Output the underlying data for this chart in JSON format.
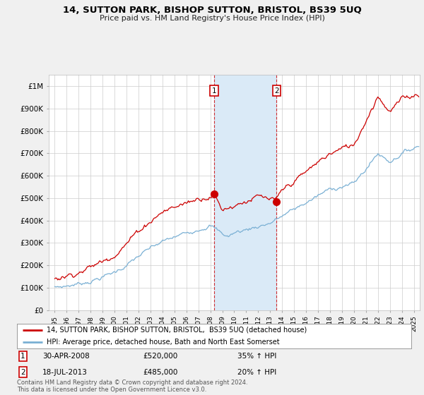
{
  "title": "14, SUTTON PARK, BISHOP SUTTON, BRISTOL, BS39 5UQ",
  "subtitle": "Price paid vs. HM Land Registry's House Price Index (HPI)",
  "ylabel_ticks": [
    "£0",
    "£100K",
    "£200K",
    "£300K",
    "£400K",
    "£500K",
    "£600K",
    "£700K",
    "£800K",
    "£900K",
    "£1M"
  ],
  "ytick_values": [
    0,
    100000,
    200000,
    300000,
    400000,
    500000,
    600000,
    700000,
    800000,
    900000,
    1000000
  ],
  "xlim": [
    1994.5,
    2025.5
  ],
  "ylim": [
    0,
    1050000
  ],
  "sale1_x": 2008.33,
  "sale1_y": 520000,
  "sale1_label": "1",
  "sale2_x": 2013.54,
  "sale2_y": 485000,
  "sale2_label": "2",
  "shade_color": "#daeaf7",
  "red_color": "#cc0000",
  "blue_color": "#7ab0d4",
  "legend1": "14, SUTTON PARK, BISHOP SUTTON, BRISTOL,  BS39 5UQ (detached house)",
  "legend2": "HPI: Average price, detached house, Bath and North East Somerset",
  "note1_label": "1",
  "note1_date": "30-APR-2008",
  "note1_price": "£520,000",
  "note1_hpi": "35% ↑ HPI",
  "note2_label": "2",
  "note2_date": "18-JUL-2013",
  "note2_price": "£485,000",
  "note2_hpi": "20% ↑ HPI",
  "footer": "Contains HM Land Registry data © Crown copyright and database right 2024.\nThis data is licensed under the Open Government Licence v3.0.",
  "background_color": "#f0f0f0",
  "plot_bg": "#ffffff",
  "grid_color": "#cccccc"
}
